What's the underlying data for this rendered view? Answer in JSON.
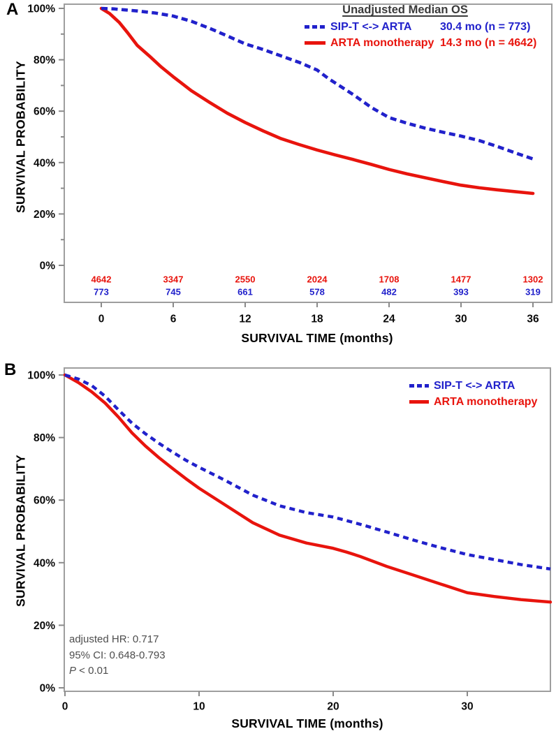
{
  "figure_title": "Kaplan-Meier overall survival curves",
  "colors": {
    "sipt_blue": "#2121cb",
    "arta_red": "#e8140d",
    "frame_gray": "#9e9e9e",
    "tick_gray": "#8a8a8a",
    "annotation_gray": "#4d4d4d",
    "legend_title_gray": "#3a3a3a"
  },
  "chart_data": [
    {
      "panel_label": "A",
      "type": "line",
      "x_axis_title": "SURVIVAL TIME (months)",
      "y_axis_title": "SURVIVAL PROBABILITY",
      "x_tick_values": [
        0,
        6,
        12,
        18,
        24,
        30,
        36
      ],
      "x_tick_labels": [
        "0",
        "6",
        "12",
        "18",
        "24",
        "30",
        "36"
      ],
      "y_tick_values": [
        100,
        80,
        60,
        40,
        20,
        0
      ],
      "y_tick_labels": [
        "100%",
        "80%",
        "60%",
        "40%",
        "20%",
        "0%"
      ],
      "y_minor_tick_values": [
        90,
        70,
        50,
        30,
        10
      ],
      "xlim": [
        0,
        37.5
      ],
      "ylim": [
        0,
        100
      ],
      "grid": false,
      "legend": {
        "position": "top-right-inside",
        "title": "Unadjusted Median OS",
        "entries": [
          {
            "name": "SIP-T <-> ARTA",
            "stat": "30.4 mo (n = 773)",
            "color": "#2121cb",
            "style": "dashed"
          },
          {
            "name": "ARTA monotherapy",
            "stat": "14.3 mo (n = 4642)",
            "color": "#e8140d",
            "style": "solid"
          }
        ]
      },
      "series": [
        {
          "name": "ARTA monotherapy",
          "color": "#e8140d",
          "style": "solid",
          "x": [
            0,
            0.7,
            1.5,
            2.2,
            3,
            4,
            5,
            6,
            7.5,
            9,
            10.5,
            12,
            13.5,
            15,
            16.5,
            18,
            19.5,
            21,
            22.5,
            24,
            25.5,
            27,
            28.5,
            30,
            31.5,
            33,
            34.5,
            36
          ],
          "y": [
            100,
            98,
            94.5,
            90.5,
            85.6,
            81.5,
            77.2,
            73.4,
            68,
            63.5,
            59.2,
            55.6,
            52.3,
            49.3,
            47,
            44.9,
            43,
            41.2,
            39.3,
            37.3,
            35.6,
            34.1,
            32.6,
            31.2,
            30.2,
            29.4,
            28.7,
            28
          ]
        },
        {
          "name": "SIP-T <-> ARTA",
          "color": "#2121cb",
          "style": "dashed",
          "x": [
            0,
            1,
            2,
            3,
            4.5,
            6,
            7.5,
            9,
            10.5,
            12,
            13.5,
            15,
            16.5,
            18,
            19,
            20,
            21,
            22.5,
            24,
            25.5,
            27,
            28.5,
            30,
            31.5,
            33,
            34.5,
            36
          ],
          "y": [
            100,
            99.8,
            99.4,
            99,
            98.2,
            97,
            95,
            92.3,
            89.3,
            86.2,
            84,
            81.5,
            79,
            76,
            72.5,
            69.5,
            66.5,
            61.5,
            57.5,
            55.3,
            53.4,
            51.8,
            50.3,
            48.6,
            46.3,
            43.8,
            41.4
          ]
        }
      ],
      "at_risk": {
        "times": [
          0,
          6,
          12,
          18,
          24,
          30,
          36
        ],
        "rows": [
          {
            "name": "ARTA monotherapy",
            "color": "#e8140d",
            "counts": [
              "4642",
              "3347",
              "2550",
              "2024",
              "1708",
              "1477",
              "1302"
            ]
          },
          {
            "name": "SIP-T <-> ARTA",
            "color": "#2121cb",
            "counts": [
              "773",
              "745",
              "661",
              "578",
              "482",
              "393",
              "319"
            ]
          }
        ]
      }
    },
    {
      "panel_label": "B",
      "type": "line",
      "x_axis_title": "SURVIVAL TIME (months)",
      "y_axis_title": "SURVIVAL PROBABILITY",
      "x_tick_values": [
        0,
        10,
        20,
        30
      ],
      "x_tick_labels": [
        "0",
        "10",
        "20",
        "30"
      ],
      "y_tick_values": [
        100,
        80,
        60,
        40,
        20,
        0
      ],
      "y_tick_labels": [
        "100%",
        "80%",
        "60%",
        "40%",
        "20%",
        "0%"
      ],
      "y_minor_tick_values": [],
      "xlim": [
        0,
        36.2
      ],
      "ylim": [
        0,
        100
      ],
      "grid": false,
      "legend": {
        "position": "top-right-inside",
        "title": "",
        "entries": [
          {
            "name": "SIP-T <-> ARTA",
            "stat": "",
            "color": "#2121cb",
            "style": "dashed"
          },
          {
            "name": "ARTA monotherapy",
            "stat": "",
            "color": "#e8140d",
            "style": "solid"
          }
        ]
      },
      "series": [
        {
          "name": "ARTA monotherapy",
          "color": "#e8140d",
          "style": "solid",
          "x": [
            0,
            1,
            2,
            3,
            4,
            5,
            6,
            7,
            8,
            9,
            10,
            12,
            14,
            16,
            18,
            20,
            21,
            22,
            24,
            26,
            28,
            30,
            32,
            34,
            36.2
          ],
          "y": [
            100,
            97.6,
            94.6,
            91,
            86.5,
            81.5,
            77.3,
            73.6,
            70.2,
            66.9,
            63.8,
            58.3,
            52.8,
            48.8,
            46.3,
            44.6,
            43.4,
            42,
            38.8,
            36,
            33.2,
            30.4,
            29.2,
            28.2,
            27.4
          ]
        },
        {
          "name": "SIP-T <-> ARTA",
          "color": "#2121cb",
          "style": "dashed",
          "x": [
            0,
            1,
            2,
            3,
            4,
            5,
            6,
            7,
            8,
            9,
            10,
            12,
            14,
            16,
            18,
            20,
            22,
            24,
            26,
            28,
            30,
            32,
            34,
            36.2
          ],
          "y": [
            100,
            98.7,
            96.6,
            93.2,
            88.8,
            84.6,
            81.2,
            78.2,
            75.4,
            72.8,
            70.5,
            66.2,
            61.6,
            58.2,
            56,
            54.6,
            52.3,
            49.8,
            47.2,
            44.8,
            42.6,
            41,
            39.4,
            38
          ]
        }
      ],
      "annotation": {
        "line1": "adjusted HR: 0.717",
        "line2": "95% CI: 0.648-0.793",
        "p_label": "P",
        "p_rest": " < 0.01"
      }
    }
  ]
}
